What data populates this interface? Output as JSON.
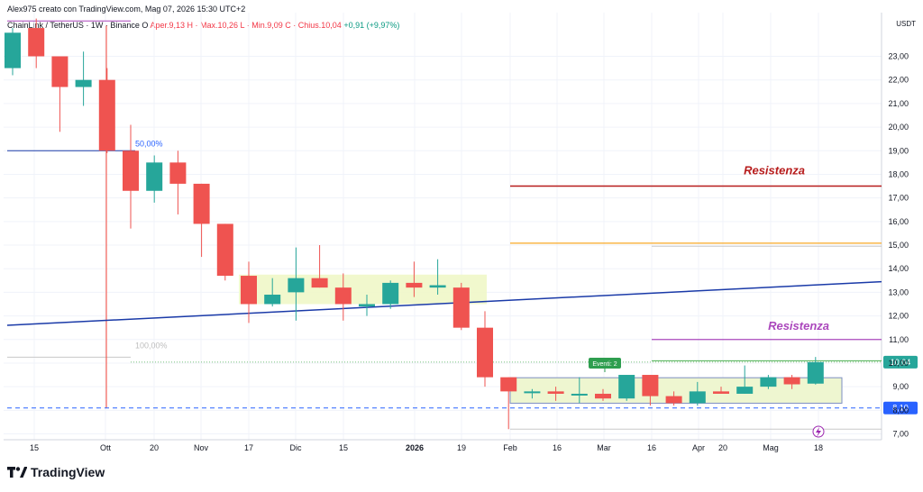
{
  "header": {
    "created_by": "Alex975 creato con TradingView.com, Mag 07, 2026 15:30 UTC+2"
  },
  "info_line": {
    "symbol": "ChainLink / TetherUS · 1W · Binance",
    "ohlc_prefix": "O",
    "ohlc": "Aper.9,13",
    "high": "H · Max.10,26",
    "low": "L · Min.9,09",
    "close": "C · Chius.10,04",
    "change": "+0,91 (+9,97%)"
  },
  "chart_data": {
    "type": "candlestick",
    "currency": "USDT",
    "ylim": [
      6.5,
      24.6
    ],
    "y_ticks": [
      "23,00",
      "22,00",
      "21,00",
      "20,00",
      "19,00",
      "18,00",
      "17,00",
      "16,00",
      "15,00",
      "14,00",
      "13,00",
      "12,00",
      "11,00",
      "10,00",
      "9,00",
      "8,00",
      "7,00"
    ],
    "x_ticks": [
      "15",
      "Ott",
      "20",
      "Nov",
      "17",
      "Dic",
      "15",
      "2026",
      "19",
      "Feb",
      "16",
      "Mar",
      "16",
      "Apr",
      "20",
      "Mag",
      "18"
    ],
    "candles": [
      {
        "o": 22.5,
        "h": 24.2,
        "l": 22.2,
        "c": 24.0
      },
      {
        "o": 24.2,
        "h": 24.6,
        "l": 22.5,
        "c": 23.0
      },
      {
        "o": 23.0,
        "h": 23.0,
        "l": 19.8,
        "c": 21.7
      },
      {
        "o": 21.7,
        "h": 23.2,
        "l": 20.9,
        "c": 22.0
      },
      {
        "o": 22.0,
        "h": 22.5,
        "l": 18.9,
        "c": 19.0
      },
      {
        "o": 19.0,
        "h": 20.1,
        "l": 15.7,
        "c": 17.3
      },
      {
        "o": 17.3,
        "h": 18.8,
        "l": 16.8,
        "c": 18.5
      },
      {
        "o": 18.5,
        "h": 19.0,
        "l": 16.3,
        "c": 17.6
      },
      {
        "o": 17.6,
        "h": 17.6,
        "l": 14.5,
        "c": 15.9
      },
      {
        "o": 15.9,
        "h": 15.9,
        "l": 13.5,
        "c": 13.7
      },
      {
        "o": 13.7,
        "h": 14.3,
        "l": 11.7,
        "c": 12.5
      },
      {
        "o": 12.5,
        "h": 13.6,
        "l": 12.4,
        "c": 12.9
      },
      {
        "o": 13.0,
        "h": 14.9,
        "l": 11.8,
        "c": 13.6
      },
      {
        "o": 13.6,
        "h": 15.0,
        "l": 13.2,
        "c": 13.2
      },
      {
        "o": 13.2,
        "h": 13.8,
        "l": 11.8,
        "c": 12.5
      },
      {
        "o": 12.4,
        "h": 12.9,
        "l": 12.0,
        "c": 12.5
      },
      {
        "o": 12.5,
        "h": 13.5,
        "l": 12.3,
        "c": 13.4
      },
      {
        "o": 13.4,
        "h": 14.3,
        "l": 12.8,
        "c": 13.2
      },
      {
        "o": 13.2,
        "h": 14.4,
        "l": 12.9,
        "c": 13.3
      },
      {
        "o": 13.2,
        "h": 13.4,
        "l": 11.4,
        "c": 11.5
      },
      {
        "o": 11.5,
        "h": 12.2,
        "l": 9.0,
        "c": 9.4
      },
      {
        "o": 9.4,
        "h": 9.4,
        "l": 7.2,
        "c": 8.8
      },
      {
        "o": 8.8,
        "h": 8.9,
        "l": 8.5,
        "c": 8.8
      },
      {
        "o": 8.8,
        "h": 9.0,
        "l": 8.4,
        "c": 8.7
      },
      {
        "o": 8.7,
        "h": 9.4,
        "l": 8.3,
        "c": 8.7
      },
      {
        "o": 8.7,
        "h": 8.9,
        "l": 8.4,
        "c": 8.5
      },
      {
        "o": 8.5,
        "h": 9.5,
        "l": 8.4,
        "c": 9.5
      },
      {
        "o": 9.5,
        "h": 9.5,
        "l": 8.2,
        "c": 8.6
      },
      {
        "o": 8.6,
        "h": 8.8,
        "l": 8.2,
        "c": 8.3
      },
      {
        "o": 8.3,
        "h": 9.2,
        "l": 8.2,
        "c": 8.8
      },
      {
        "o": 8.8,
        "h": 9.0,
        "l": 8.7,
        "c": 8.7
      },
      {
        "o": 8.7,
        "h": 9.9,
        "l": 8.7,
        "c": 9.0
      },
      {
        "o": 9.0,
        "h": 9.5,
        "l": 8.9,
        "c": 9.4
      },
      {
        "o": 9.4,
        "h": 9.5,
        "l": 8.9,
        "c": 9.1
      },
      {
        "o": 9.13,
        "h": 10.26,
        "l": 9.09,
        "c": 10.04
      }
    ],
    "fib_labels": {
      "fifty": "50,00%",
      "hundred": "100,00%"
    },
    "resistance_label": "Resistenza",
    "event_badge": "Eventi: 2",
    "price_labels": {
      "current": "10,04",
      "support": "8,10"
    },
    "colors": {
      "up": "#26a69a",
      "down": "#ef5350",
      "resistance_red": "#b71c1c",
      "resistance_purple": "#ab47bc",
      "orange": "#f9a825",
      "blue": "#1a3aa8",
      "zone": "#f0f7c8"
    }
  },
  "brand": {
    "name": "TradingView"
  }
}
